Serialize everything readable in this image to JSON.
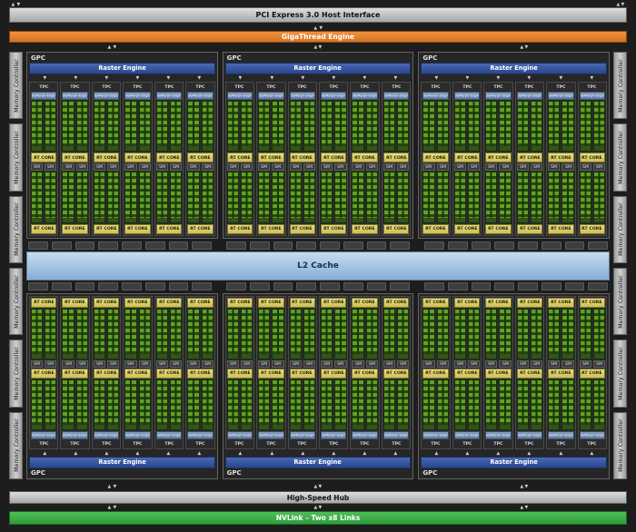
{
  "icons": {
    "arrow_up": "▲",
    "arrow_down": "▼"
  },
  "top": {
    "pci_label": "PCI Express 3.0 Host Interface",
    "gigathread_label": "GigaThread Engine"
  },
  "gpc": {
    "count": 6,
    "per_row": 3,
    "label": "GPC",
    "raster_label": "Raster Engine",
    "raster_arrow_count": 6,
    "tpc_count": 6,
    "tpc_label": "TPC",
    "polymorph_label": "PolyMorph Engine",
    "sm_per_tpc": 2,
    "sm_label": "SM",
    "rt_label": "RT CORE"
  },
  "l2": {
    "label": "L2 Cache",
    "slice_groups": 3,
    "slices_per_group": 8
  },
  "memory": {
    "label": "Memory Controller",
    "per_side": 6
  },
  "bottom": {
    "hub_label": "High-Speed Hub",
    "nvlink_label": "NVLink – Two x8 Links"
  },
  "colors": {
    "gigathread_orange": "#e8832e",
    "raster_blue": "#3a57a8",
    "polymorph_blue": "#6f89ad",
    "core_green_bright": "#61a122",
    "core_green_dark": "#27470f",
    "rt_core_yellow": "#ddd06a",
    "l2_blue": "#a9c9e6",
    "nvlink_green": "#37a845",
    "controller_gray": "#b5b5b5"
  }
}
